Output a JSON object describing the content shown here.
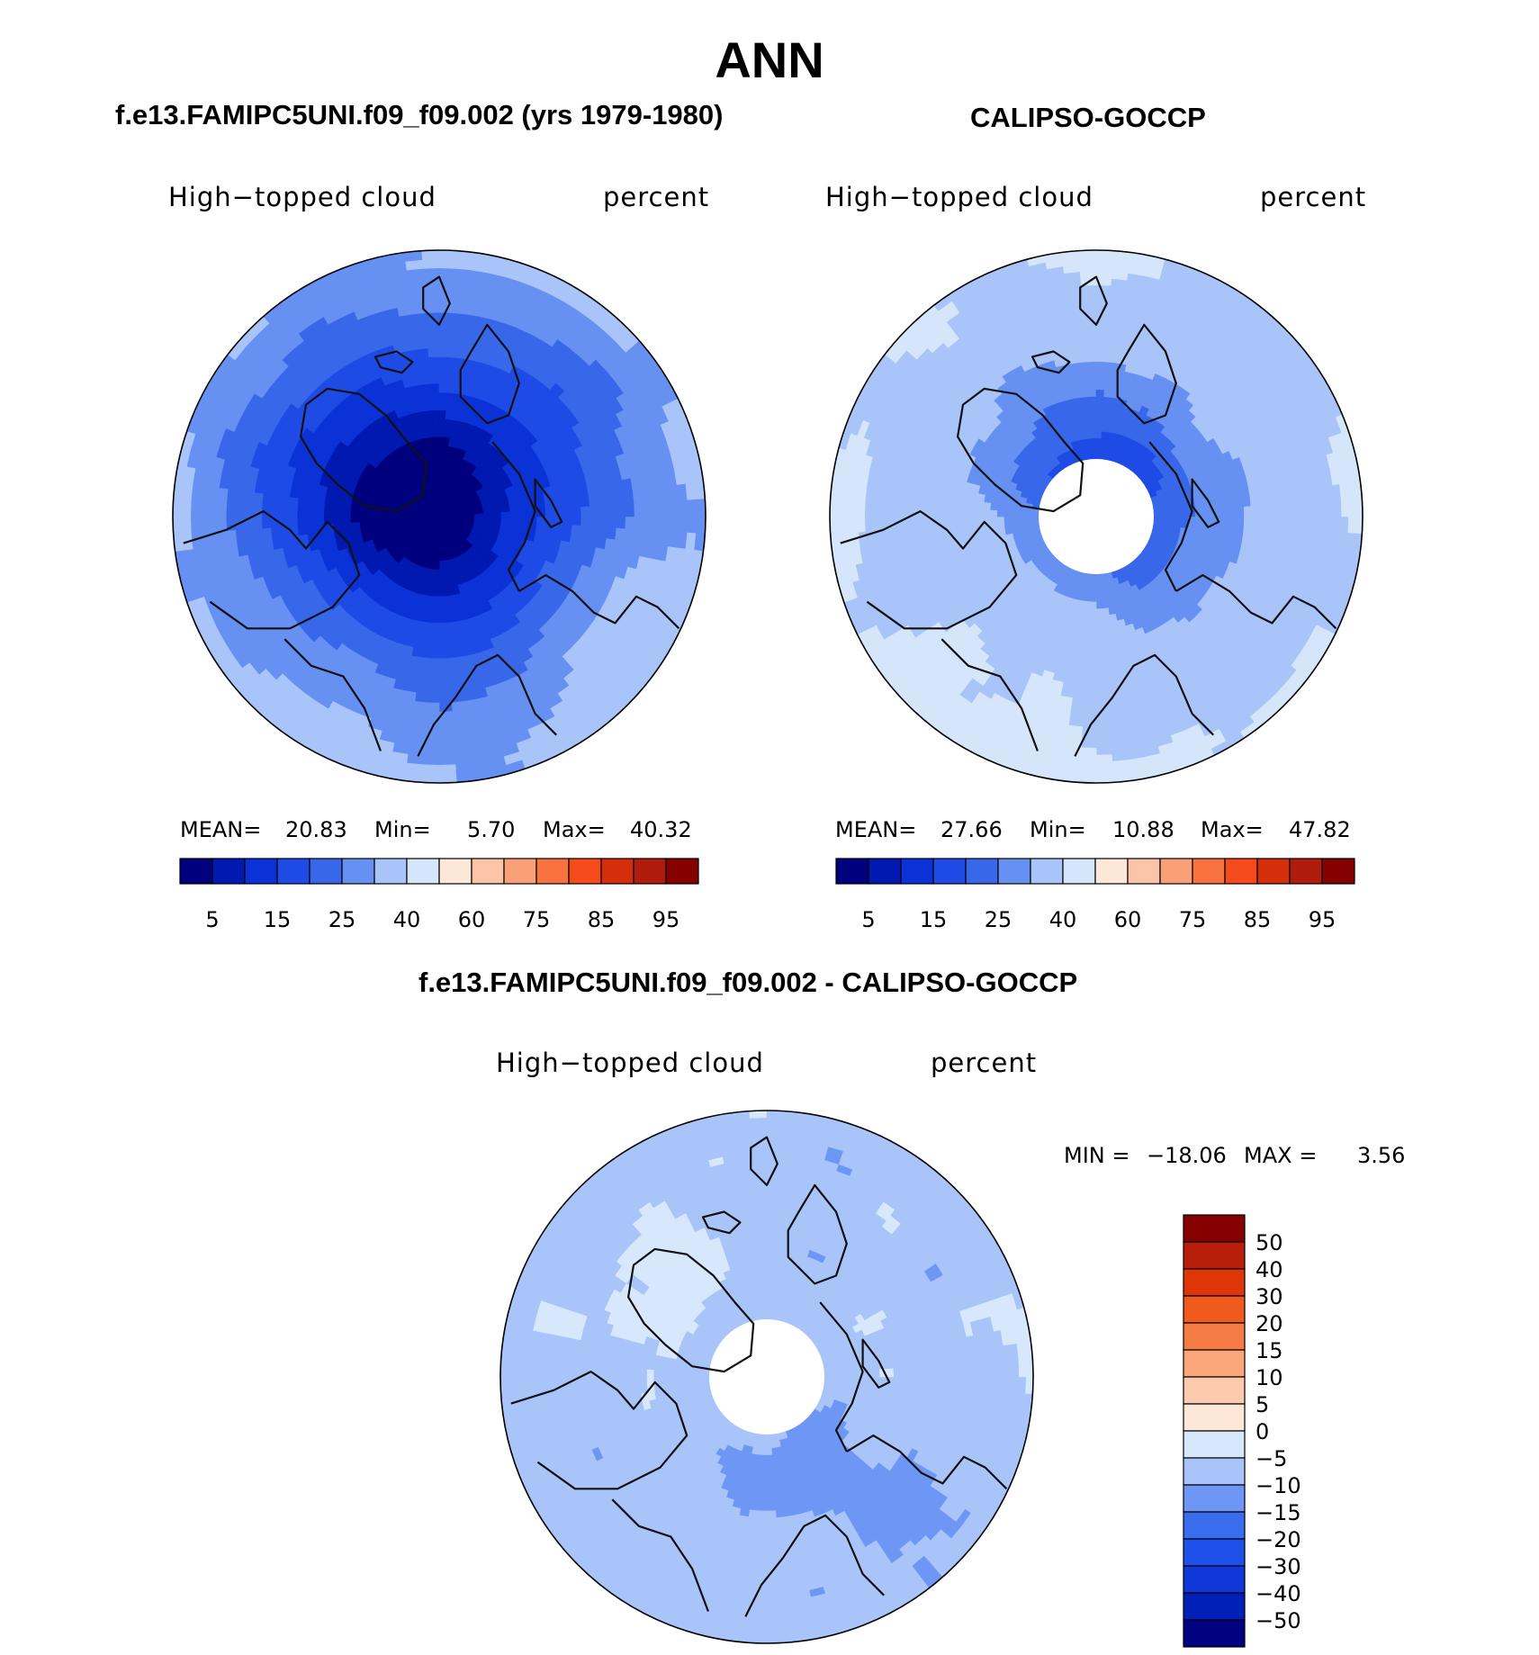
{
  "header": {
    "title": "ANN"
  },
  "panels": [
    {
      "case_title": "f.e13.FAMIPC5UNI.f09_f09.002 (yrs 1979-1980)",
      "variable": "High−topped cloud",
      "units": "percent",
      "stats": {
        "mean_label": "MEAN=",
        "mean": "20.83",
        "min_label": "Min=",
        "min": "5.70",
        "max_label": "Max=",
        "max": "40.32"
      }
    },
    {
      "case_title": "CALIPSO-GOCCP",
      "variable": "High−topped cloud",
      "units": "percent",
      "stats": {
        "mean_label": "MEAN=",
        "mean": "27.66",
        "min_label": "Min=",
        "min": "10.88",
        "max_label": "Max=",
        "max": "47.82"
      }
    }
  ],
  "diff_panel": {
    "case_title": "f.e13.FAMIPC5UNI.f09_f09.002 - CALIPSO-GOCCP",
    "variable": "High−topped cloud",
    "units": "percent",
    "minmax": {
      "min_label": "MIN =",
      "min": "−18.06",
      "max_label": "MAX =",
      "max": "3.56"
    }
  },
  "colors": {
    "abs_scale": [
      "#00007f",
      "#0019b0",
      "#0a32d6",
      "#1e4be6",
      "#3867ea",
      "#6690f2",
      "#a8c4f8",
      "#d5e6fb",
      "#fde7d8",
      "#fcc4a8",
      "#f9a079",
      "#f97341",
      "#f44a1c",
      "#d42e0a",
      "#b01c0b",
      "#850000"
    ],
    "diff_scale": [
      "#000080",
      "#0020b8",
      "#1038d8",
      "#1e50ea",
      "#3a6cee",
      "#6e96f4",
      "#a8c4f8",
      "#d8e8fc",
      "#fde8d8",
      "#fccbae",
      "#fba57a",
      "#f67c45",
      "#f05a1d",
      "#de3608",
      "#b81e0a",
      "#860000"
    ],
    "coast": "#111111"
  },
  "chart_data": [
    {
      "type": "heatmap",
      "projection": "north polar stereographic",
      "title": "f.e13.FAMIPC5UNI.f09_f09.002 (yrs 1979-1980)",
      "variable": "High−topped cloud",
      "units": "percent",
      "stats": {
        "mean": 20.83,
        "min": 5.7,
        "max": 40.32
      },
      "colorbar": {
        "orientation": "horizontal",
        "levels": [
          5,
          10,
          15,
          20,
          25,
          30,
          40,
          50,
          60,
          70,
          75,
          80,
          85,
          90,
          95
        ],
        "tick_labels": [
          "5",
          "15",
          "25",
          "40",
          "60",
          "75",
          "85",
          "95"
        ]
      },
      "fields": {
        "pole": 6,
        "atlantic_60N": 22,
        "pacific_60N": 24,
        "edge": 30
      }
    },
    {
      "type": "heatmap",
      "projection": "north polar stereographic",
      "title": "CALIPSO-GOCCP",
      "variable": "High−topped cloud",
      "units": "percent",
      "stats": {
        "mean": 27.66,
        "min": 10.88,
        "max": 47.82
      },
      "missing_data": "north of 82N",
      "colorbar": {
        "orientation": "horizontal",
        "levels": [
          5,
          10,
          15,
          20,
          25,
          30,
          40,
          50,
          60,
          70,
          75,
          80,
          85,
          90,
          95
        ],
        "tick_labels": [
          "5",
          "15",
          "25",
          "40",
          "60",
          "75",
          "85",
          "95"
        ]
      },
      "fields": {
        "high_arctic": 22,
        "60N": 32,
        "edge": 40
      }
    },
    {
      "type": "heatmap",
      "projection": "north polar stereographic",
      "title": "f.e13.FAMIPC5UNI.f09_f09.002 - CALIPSO-GOCCP",
      "variable": "High−topped cloud",
      "units": "percent",
      "stats": {
        "min": -18.06,
        "max": 3.56
      },
      "missing_data": "north of 82N",
      "colorbar": {
        "orientation": "vertical",
        "levels": [
          -50,
          -40,
          -30,
          -20,
          -15,
          -10,
          -5,
          0,
          5,
          10,
          15,
          20,
          30,
          40,
          50
        ],
        "tick_labels": [
          "50",
          "40",
          "30",
          "20",
          "15",
          "10",
          "5",
          "0",
          "−5",
          "−10",
          "−15",
          "−20",
          "−30",
          "−40",
          "−50"
        ]
      },
      "fields": {
        "typical": -7,
        "greenland": 1,
        "edge": -9
      }
    }
  ]
}
